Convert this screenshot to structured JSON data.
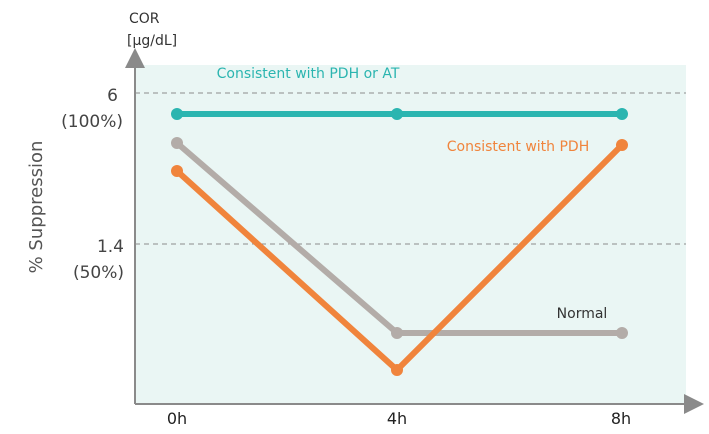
{
  "chart_data": {
    "type": "line",
    "y_unit_label": [
      "COR",
      "[µg/dL]"
    ],
    "ylabel": "% Suppression",
    "categories": [
      "0h",
      "4h",
      "8h"
    ],
    "reference_lines": [
      {
        "value": "6",
        "label": "(100%)"
      },
      {
        "value": "1.4",
        "label": "(50%)"
      }
    ],
    "series": [
      {
        "name": "Consistent with PDH or AT",
        "values": [
          5.3,
          5.3,
          5.3
        ],
        "color": "#2bb5b0"
      },
      {
        "name": "Consistent with PDH",
        "values": [
          3.3,
          0.0,
          4.2
        ],
        "color": "#f0843c"
      },
      {
        "name": "Normal",
        "values": [
          4.3,
          0.65,
          0.65
        ],
        "color": "#b3aca8"
      }
    ],
    "plot_background": "#eaf6f4",
    "grid": false
  }
}
